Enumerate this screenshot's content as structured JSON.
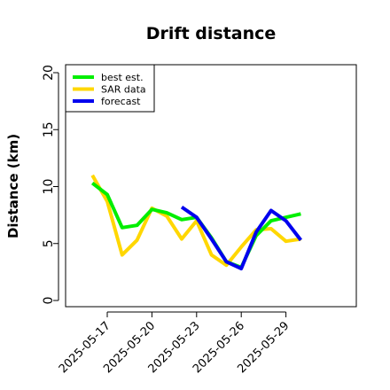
{
  "chart_data": {
    "type": "line",
    "title": "Drift distance",
    "xlabel": "",
    "ylabel": "Distance (km)",
    "ylim": [
      0,
      20
    ],
    "yticks": [
      0,
      5,
      10,
      15,
      20
    ],
    "xticks": [
      "2025-05-17",
      "2025-05-20",
      "2025-05-23",
      "2025-05-26",
      "2025-05-29"
    ],
    "legend_position": "top-left",
    "grid": false,
    "series": [
      {
        "name": "best est.",
        "color": "#00ee00",
        "x": [
          "2025-05-16",
          "2025-05-17",
          "2025-05-18",
          "2025-05-19",
          "2025-05-20",
          "2025-05-21",
          "2025-05-22",
          "2025-05-23",
          "2025-05-24",
          "2025-05-25",
          "2025-05-26",
          "2025-05-27",
          "2025-05-28",
          "2025-05-29",
          "2025-05-30"
        ],
        "values": [
          10.3,
          9.3,
          6.4,
          6.6,
          8.0,
          7.7,
          7.1,
          7.3,
          5.5,
          3.4,
          2.9,
          5.7,
          7.0,
          7.3,
          7.6
        ]
      },
      {
        "name": "SAR data",
        "color": "#ffd700",
        "x": [
          "2025-05-16",
          "2025-05-17",
          "2025-05-18",
          "2025-05-19",
          "2025-05-20",
          "2025-05-21",
          "2025-05-22",
          "2025-05-23",
          "2025-05-24",
          "2025-05-25",
          "2025-05-26",
          "2025-05-27",
          "2025-05-28",
          "2025-05-29",
          "2025-05-30"
        ],
        "values": [
          11.0,
          8.7,
          4.0,
          5.3,
          8.1,
          7.4,
          5.4,
          7.0,
          4.0,
          3.1,
          4.7,
          6.2,
          6.3,
          5.2,
          5.4
        ]
      },
      {
        "name": "forecast",
        "color": "#0000ee",
        "x": [
          "2025-05-22",
          "2025-05-23",
          "2025-05-24",
          "2025-05-25",
          "2025-05-26",
          "2025-05-27",
          "2025-05-28",
          "2025-05-29",
          "2025-05-30"
        ],
        "values": [
          8.2,
          7.3,
          5.4,
          3.4,
          2.8,
          6.0,
          7.9,
          7.0,
          5.3
        ]
      }
    ]
  }
}
